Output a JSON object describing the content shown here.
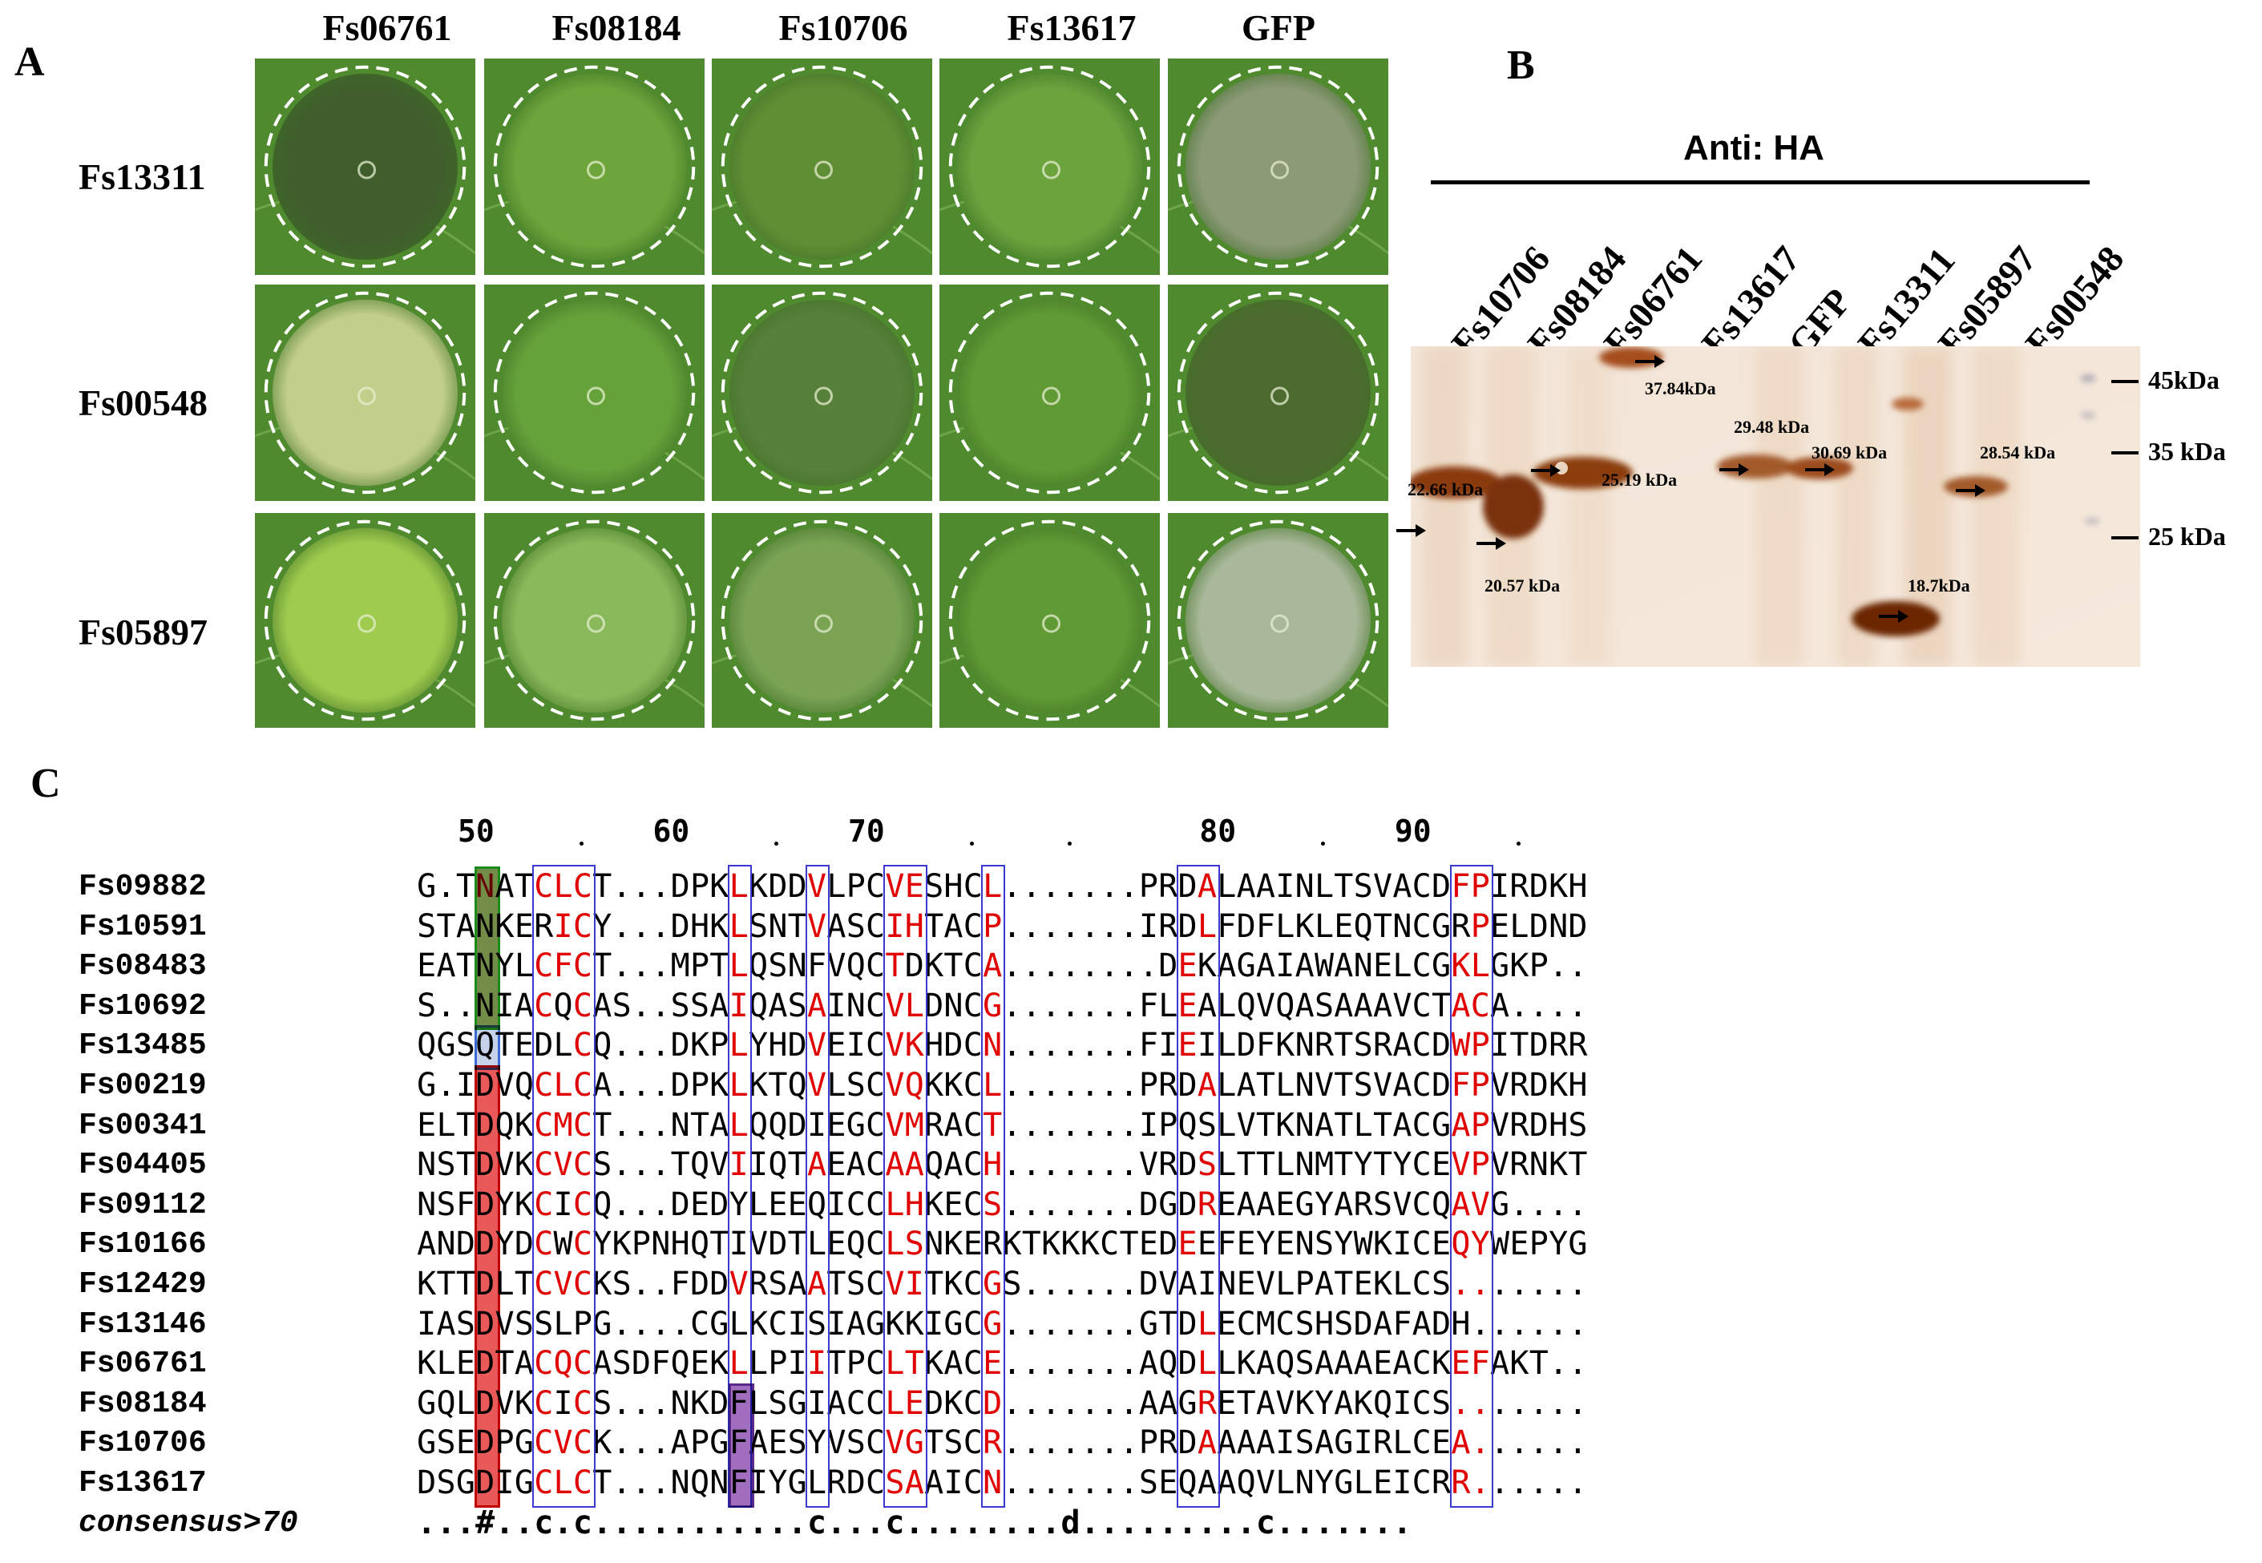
{
  "panels": {
    "a": "A",
    "b": "B",
    "c": "C"
  },
  "panel_a": {
    "columns": [
      "Fs06761",
      "Fs08184",
      "Fs10706",
      "Fs13617",
      "GFP"
    ],
    "rows": [
      "Fs13311",
      "Fs00548",
      "Fs05897"
    ],
    "leaf_colors": [
      [
        "#3f5e2c",
        "#6ea53b",
        "#5f8e34",
        "#6ba33d",
        "#8c9a78"
      ],
      [
        "#c2cf8a",
        "#65a23a",
        "#57803a",
        "#5f9a34",
        "#4d6b30"
      ],
      [
        "#9fcc4e",
        "#89b95a",
        "#7aa354",
        "#5f9a34",
        "#a9b89a"
      ]
    ]
  },
  "panel_b": {
    "antibody": "Anti: HA",
    "lanes": [
      "Fs10706",
      "Fs08184",
      "Fs06761",
      "Fs13617",
      "GFP",
      "Fs13311",
      "Fs05897",
      "Fs00548"
    ],
    "markers": [
      "45kDa",
      "35 kDa",
      "25 kDa"
    ],
    "bands": [
      "22.66 kDa",
      "20.57 kDa",
      "25.19 kDa",
      "37.84kDa",
      "29.48 kDa",
      "30.69 kDa",
      "18.7kDa",
      "28.54 kDa"
    ]
  },
  "panel_c": {
    "ruler": [
      "50",
      "60",
      "70",
      "80",
      "90"
    ],
    "names": [
      "Fs09882",
      "Fs10591",
      "Fs08483",
      "Fs10692",
      "Fs13485",
      "Fs00219",
      "Fs00341",
      "Fs04405",
      "Fs09112",
      "Fs10166",
      "Fs12429",
      "Fs13146",
      "Fs06761",
      "Fs08184",
      "Fs10706",
      "Fs13617"
    ],
    "sequences": [
      "G.TNATCLCT...DPKLKDDVLPCVESHCL.......PRDALAAINLTSVACDFPIRDKH",
      "STANKERICY...DHKLSNTVASCIHTACP.......IRDLFDFLKLEQTNCGRPELDND",
      "EATNYLCFCT...MPTLQSNFVQCTDKTCA........DEKAGAIAWANELCGKLGKP..",
      "S..NIACQCAS..SSAIQASAINCVLDNCG.......FLEALQVQASAAAVCTACA....",
      "QGSQTEDLCQ...DKPLYHDVEICVKHDCN.......FIEILDFKNRTSRACDWPITDRR",
      "G.IDVQCLCA...DPKLKTQVLSCVQKKCL.......PRDALATLNVTSVACDFPVRDKH",
      "ELTDQKCMCT...NTALQQDIEGCVMRACT.......IPQSLVTKNATLTACGAPVRDHS",
      "NSTDVKCVCS...TQVIIQTAEACAAQACH.......VRDSLTTLNMTYTYCEVPVRNKT",
      "NSFDYKCICQ...DEDYLEEQICCLHKECS.......DGDREAAEGYARSVCQAVG....",
      "ANDDYDCWCYKPNHQTIVDTLEQCLSNKERKTKKKCTEDEEFEYENSYWKICEQYWEPYG",
      "KTTDLTCVCKS..FDDVRSAATSCVITKCGS......DVAINEVLPATEKLCS.......",
      "IASDVSSLPG....CGLKCISIAGKKIGCG.......GTDLECMCSHSDAFADH......",
      "KLEDTACQCASDFQEKLLPIITPCLTKACE.......AQDLLKAQSAAAEACKEFAKT..",
      "GQLDVKCICS...NKDFLSGIACCLEDKCD.......AAGRETAVKYAKQICS.......",
      "GSEDPGCVCK...APGFAESYVSCVGTSCR.......PRDAAAAISAGIRLCEA......",
      "DSGDIGCLCT...NQNFIYGLRDCSAAICN.......SEQAAQVLNYGLEICRR......"
    ],
    "consensus_label": "consensus>70",
    "consensus": "...#..c.c...........c...c........d.........c......."
  }
}
